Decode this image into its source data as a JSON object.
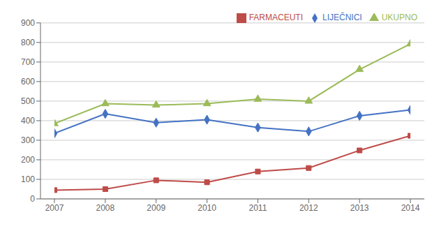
{
  "chart_data": {
    "type": "line",
    "x": [
      2007,
      2008,
      2009,
      2010,
      2011,
      2012,
      2013,
      2014
    ],
    "xlim": [
      2007,
      2014
    ],
    "xticks": [
      2007,
      2008,
      2009,
      2010,
      2011,
      2012,
      2013,
      2014
    ],
    "ylim": [
      0,
      900
    ],
    "yticks": [
      0,
      100,
      200,
      300,
      400,
      500,
      600,
      700,
      800,
      900
    ],
    "grid": true,
    "legend": "upper right",
    "series": [
      {
        "name": "LIJEČNICI",
        "color": "#4472C4",
        "marker": "diamond",
        "values": [
          335,
          435,
          390,
          405,
          365,
          345,
          425,
          455
        ]
      },
      {
        "name": "FARMACEUTI",
        "color": "#BE4B48",
        "marker": "square",
        "values": [
          45,
          50,
          95,
          85,
          140,
          158,
          248,
          323
        ]
      },
      {
        "name": "UKUPNO",
        "color": "#9BBB59",
        "marker": "triangle",
        "values": [
          385,
          487,
          480,
          487,
          510,
          500,
          662,
          793
        ]
      }
    ]
  }
}
